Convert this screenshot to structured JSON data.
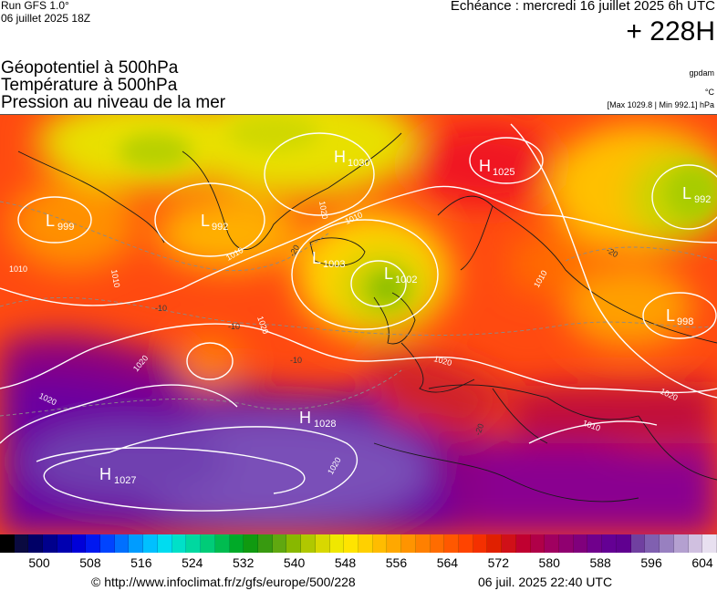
{
  "header": {
    "run_label": "Run GFS 1.0°",
    "run_date": "06 juillet 2025 18Z",
    "valid_label": "Echéance : mercredi 16 juillet 2025 6h UTC",
    "lead_time": "+ 228H",
    "units_geopotential": "gpdam",
    "units_temperature": "°C",
    "pressure_minmax": "[Max 1029.8 | Min 992.1] hPa"
  },
  "titles": {
    "line1": "Géopotentiel à 500hPa",
    "line2": "Température à 500hPa",
    "line3": "Pression au niveau de la mer"
  },
  "map": {
    "highs": [
      {
        "letter": "H",
        "value": "1030"
      },
      {
        "letter": "H",
        "value": "1025"
      },
      {
        "letter": "H",
        "value": "1028"
      },
      {
        "letter": "H",
        "value": "1027"
      }
    ],
    "lows": [
      {
        "letter": "L",
        "value": "999"
      },
      {
        "letter": "L",
        "value": "992"
      },
      {
        "letter": "L",
        "value": "1003"
      },
      {
        "letter": "L",
        "value": "1002"
      },
      {
        "letter": "L",
        "value": "992"
      },
      {
        "letter": "L",
        "value": "998"
      }
    ],
    "isobar_labels": [
      "1010",
      "1010",
      "1020",
      "1020",
      "1020",
      "1020",
      "1010",
      "1020",
      "1020",
      "1010",
      "1010",
      "1020",
      "1010",
      "1010"
    ],
    "temperature_labels": [
      "-20",
      "-20",
      "-10",
      "-10",
      "-10",
      "-20"
    ]
  },
  "colorbar": {
    "ticks": [
      "500",
      "508",
      "516",
      "524",
      "532",
      "540",
      "548",
      "556",
      "564",
      "572",
      "580",
      "588",
      "596",
      "604"
    ],
    "colors": [
      "#000000",
      "#0a0a40",
      "#000066",
      "#00008c",
      "#0000b0",
      "#0000d8",
      "#0018f0",
      "#0044ff",
      "#0070ff",
      "#009cff",
      "#00c0ff",
      "#00dcf0",
      "#00e0c8",
      "#00d8a0",
      "#00cc78",
      "#00bc50",
      "#00aa28",
      "#109a10",
      "#389a10",
      "#60a810",
      "#88b800",
      "#b0c800",
      "#d8d800",
      "#f0e800",
      "#ffe400",
      "#ffd000",
      "#ffbc00",
      "#ffa800",
      "#ff9400",
      "#ff8000",
      "#ff6c00",
      "#ff5800",
      "#ff4400",
      "#f43000",
      "#e02000",
      "#d01018",
      "#c00030",
      "#b00048",
      "#a00060",
      "#900070",
      "#80007c",
      "#70008c",
      "#640094",
      "#600090",
      "#7040a0",
      "#8060b0",
      "#9880c0",
      "#b4a0d0",
      "#d0c0e0",
      "#e8e0f0"
    ]
  },
  "footer": {
    "copyright": "© http://www.infoclimat.fr/z/gfs/europe/500/228",
    "generated": "06 juil. 2025 22:40 UTC"
  }
}
